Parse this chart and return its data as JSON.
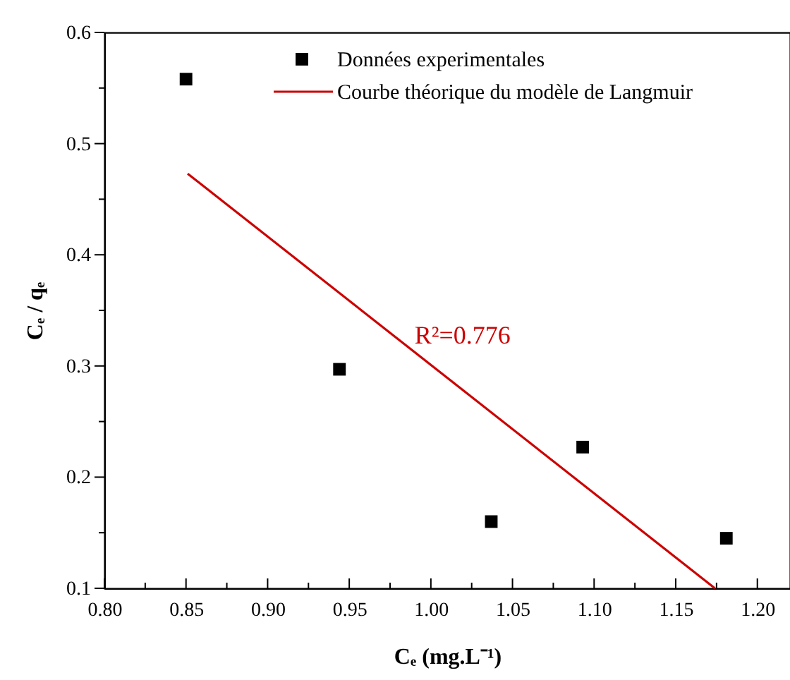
{
  "chart_data": {
    "type": "scatter",
    "xlabel": "Cₑ (mg.L⁻¹)",
    "ylabel": "Cₑ / qₑ",
    "xlim": [
      0.8,
      1.22
    ],
    "ylim": [
      0.1,
      0.6
    ],
    "xticks": [
      {
        "value": 0.8,
        "label": "0.80"
      },
      {
        "value": 0.825,
        "label": null
      },
      {
        "value": 0.85,
        "label": "0.85"
      },
      {
        "value": 0.875,
        "label": null
      },
      {
        "value": 0.9,
        "label": "0.90"
      },
      {
        "value": 0.925,
        "label": null
      },
      {
        "value": 0.95,
        "label": "0.95"
      },
      {
        "value": 0.975,
        "label": null
      },
      {
        "value": 1.0,
        "label": "1.00"
      },
      {
        "value": 1.025,
        "label": null
      },
      {
        "value": 1.05,
        "label": "1.05"
      },
      {
        "value": 1.075,
        "label": null
      },
      {
        "value": 1.1,
        "label": "1.10"
      },
      {
        "value": 1.125,
        "label": null
      },
      {
        "value": 1.15,
        "label": "1.15"
      },
      {
        "value": 1.175,
        "label": null
      },
      {
        "value": 1.2,
        "label": "1.20"
      }
    ],
    "yticks": [
      0.1,
      {
        "value": 0.15,
        "label": null
      },
      0.2,
      {
        "value": 0.25,
        "label": null
      },
      0.3,
      {
        "value": 0.35,
        "label": null
      },
      0.4,
      {
        "value": 0.45,
        "label": null
      },
      0.5,
      {
        "value": 0.55,
        "label": null
      },
      0.6
    ],
    "series": [
      {
        "name": "Données experimentales",
        "type": "scatter",
        "color": "#000000",
        "marker": "square",
        "x": [
          0.85,
          0.944,
          1.037,
          1.093,
          1.181
        ],
        "values": [
          0.558,
          0.297,
          0.16,
          0.227,
          0.145
        ]
      },
      {
        "name": "Courbe théorique du modèle de Langmuir",
        "type": "line",
        "color": "#cc0000",
        "line_style": "solid",
        "x": [
          0.851,
          1.174
        ],
        "values": [
          0.473,
          0.1
        ]
      }
    ],
    "annotations": [
      {
        "text": "R²=0.776",
        "x": 0.99,
        "y": 0.32
      }
    ],
    "legend": "top",
    "grid": false
  }
}
